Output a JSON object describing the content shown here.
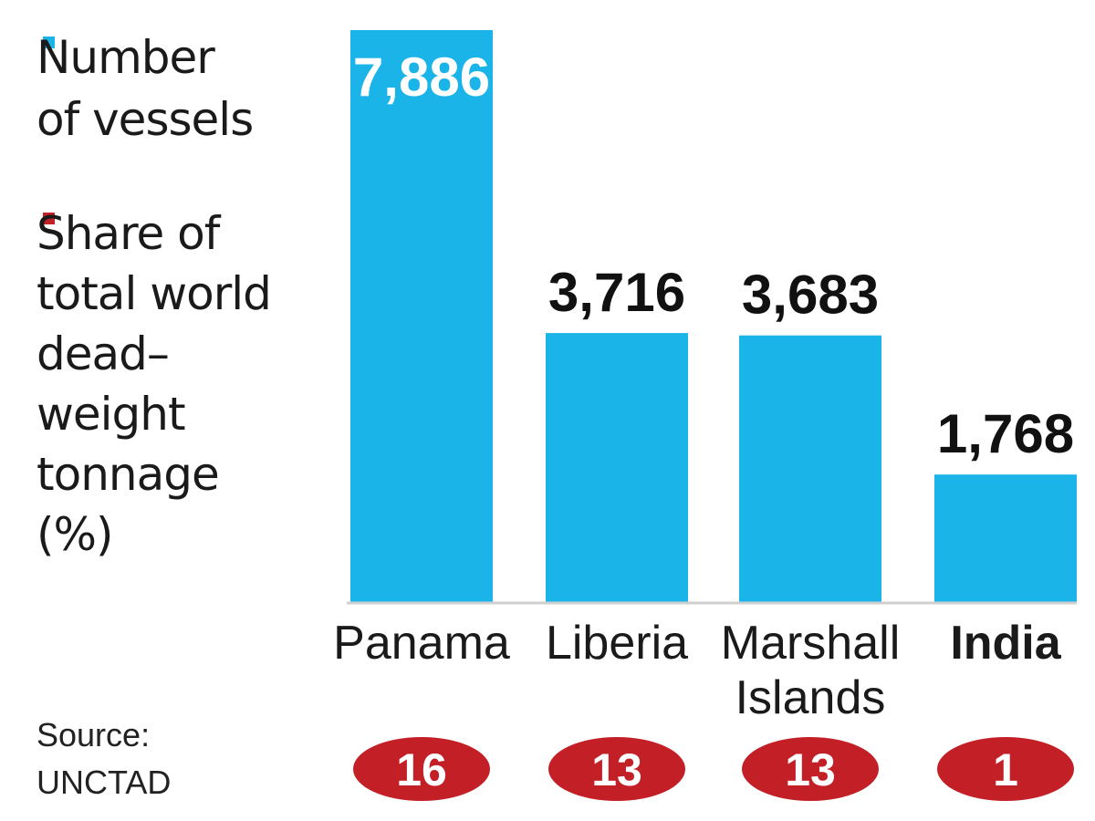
{
  "chart_data": {
    "type": "bar",
    "categories": [
      "Panama",
      "Liberia",
      "Marshall Islands",
      "India"
    ],
    "category_lines": [
      [
        "Panama"
      ],
      [
        "Liberia"
      ],
      [
        "Marshall",
        "Islands"
      ],
      [
        "India"
      ]
    ],
    "highlight_category": "India",
    "series": [
      {
        "legend_lines": [
          "Number",
          "of vessels"
        ],
        "color": "#1bb4e8",
        "values": [
          7886,
          3716,
          3683,
          1768
        ],
        "value_labels": [
          "7,886",
          "3,716",
          "3,683",
          "1,768"
        ]
      },
      {
        "legend_lines": [
          "Share of",
          "total world",
          "dead–",
          "weight",
          "tonnage",
          "(%)"
        ],
        "color": "#c21f26",
        "values": [
          16,
          13,
          13,
          1
        ],
        "value_labels": [
          "16",
          "13",
          "13",
          "1"
        ]
      }
    ],
    "ylim": [
      0,
      7886
    ],
    "grid": false,
    "legend_position": "left",
    "source_lines": [
      "Source:",
      "UNCTAD"
    ]
  }
}
